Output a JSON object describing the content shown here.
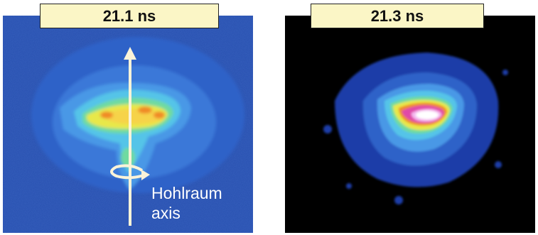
{
  "panels": [
    {
      "time_label": "21.1 ns",
      "background": "#2850b0",
      "annotation": [
        "Hohlraum",
        "axis"
      ]
    },
    {
      "time_label": "21.3 ns",
      "background": "#000000"
    }
  ],
  "colors": {
    "label_fill": "#fbf6c6",
    "arrow": "#fbf3d8"
  }
}
